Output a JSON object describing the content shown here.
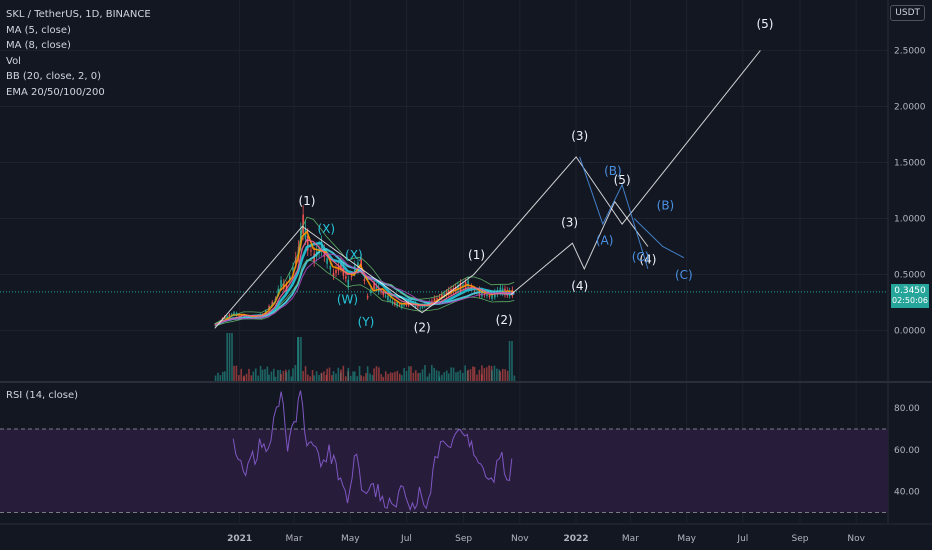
{
  "header": {
    "symbol": "SKL / TetherUS, 1D, BINANCE",
    "indicators": [
      "MA (5, close)",
      "MA (8, close)",
      "Vol",
      "BB (20, close, 2, 0)",
      "EMA 20/50/100/200"
    ],
    "currency": "USDT"
  },
  "price_tag": {
    "value": "0.3450",
    "countdown": "02:50:06"
  },
  "rsi_panel": {
    "label": "RSI (14, close)"
  },
  "colors": {
    "background": "#131722",
    "candle_up": "#26a69a",
    "candle_down": "#ef5350",
    "wave_white": "#f2f2f2",
    "wave_blue": "#4a90e2",
    "rsi_line": "#7e57c2",
    "rsi_band": "#2a1d3d"
  },
  "chart_data": [
    {
      "type": "line",
      "name": "price",
      "y_axis_ticks": [
        "2.5000",
        "2.0000",
        "1.5000",
        "1.0000",
        "0.5000",
        "0.0000"
      ],
      "x_axis_ticks": [
        "2021",
        "Mar",
        "May",
        "Jul",
        "Sep",
        "Nov",
        "2022",
        "Mar",
        "May",
        "Jul",
        "Sep",
        "Nov"
      ],
      "ylim": [
        -0.45,
        2.95
      ],
      "price_path": [
        [
          "2020-12-05",
          0.05
        ],
        [
          "2020-12-15",
          0.12
        ],
        [
          "2020-12-25",
          0.15
        ],
        [
          "2021-01-05",
          0.13
        ],
        [
          "2021-01-15",
          0.12
        ],
        [
          "2021-01-25",
          0.14
        ],
        [
          "2021-02-01",
          0.2
        ],
        [
          "2021-02-08",
          0.28
        ],
        [
          "2021-02-14",
          0.42
        ],
        [
          "2021-02-20",
          0.38
        ],
        [
          "2021-02-27",
          0.55
        ],
        [
          "2021-03-05",
          0.7
        ],
        [
          "2021-03-10",
          0.95
        ],
        [
          "2021-03-15",
          0.78
        ],
        [
          "2021-03-22",
          0.65
        ],
        [
          "2021-03-30",
          0.75
        ],
        [
          "2021-04-05",
          0.62
        ],
        [
          "2021-04-12",
          0.5
        ],
        [
          "2021-04-20",
          0.58
        ],
        [
          "2021-04-28",
          0.42
        ],
        [
          "2021-05-05",
          0.55
        ],
        [
          "2021-05-12",
          0.6
        ],
        [
          "2021-05-19",
          0.3
        ],
        [
          "2021-05-26",
          0.4
        ],
        [
          "2021-06-05",
          0.33
        ],
        [
          "2021-06-15",
          0.25
        ],
        [
          "2021-06-25",
          0.22
        ],
        [
          "2021-07-05",
          0.25
        ],
        [
          "2021-07-15",
          0.2
        ],
        [
          "2021-07-25",
          0.24
        ],
        [
          "2021-08-05",
          0.3
        ],
        [
          "2021-08-15",
          0.34
        ],
        [
          "2021-08-25",
          0.38
        ],
        [
          "2021-09-05",
          0.42
        ],
        [
          "2021-09-12",
          0.35
        ],
        [
          "2021-09-20",
          0.33
        ],
        [
          "2021-10-01",
          0.3
        ],
        [
          "2021-10-10",
          0.36
        ],
        [
          "2021-10-20",
          0.33
        ],
        [
          "2021-10-26",
          0.345
        ]
      ],
      "wave_white": [
        [
          "2020-12-05",
          0.02
        ],
        [
          "2021-03-10",
          0.93
        ],
        [
          "2021-07-18",
          0.16
        ],
        [
          "2021-09-12",
          0.5
        ],
        [
          "2022-01-01",
          1.55
        ],
        [
          "2022-02-20",
          0.95
        ],
        [
          "2022-07-20",
          2.5
        ]
      ],
      "wave_white_2": [
        [
          "2021-10-22",
          0.32
        ],
        [
          "2021-12-28",
          0.78
        ],
        [
          "2022-01-10",
          0.55
        ],
        [
          "2022-02-12",
          1.15
        ],
        [
          "2022-03-20",
          0.75
        ]
      ],
      "wave_blue_1": [
        [
          "2022-01-05",
          1.55
        ],
        [
          "2022-01-30",
          0.95
        ],
        [
          "2022-02-20",
          1.3
        ],
        [
          "2022-03-20",
          0.55
        ]
      ],
      "wave_blue_2": [
        [
          "2022-03-05",
          1.0
        ],
        [
          "2022-04-05",
          0.75
        ],
        [
          "2022-04-28",
          0.65
        ]
      ],
      "wave_labels": [
        {
          "text": "(1)",
          "x": "2021-03-15",
          "y": 1.12,
          "color": "white"
        },
        {
          "text": "(X)",
          "x": "2021-04-05",
          "y": 0.87,
          "color": "teal"
        },
        {
          "text": "(X)",
          "x": "2021-05-05",
          "y": 0.64,
          "color": "teal"
        },
        {
          "text": "(W)",
          "x": "2021-04-28",
          "y": 0.24,
          "color": "teal"
        },
        {
          "text": "(Y)",
          "x": "2021-05-18",
          "y": 0.04,
          "color": "teal"
        },
        {
          "text": "(2)",
          "x": "2021-07-18",
          "y": -0.01,
          "color": "white"
        },
        {
          "text": "(1)",
          "x": "2021-09-15",
          "y": 0.64,
          "color": "white"
        },
        {
          "text": "(2)",
          "x": "2021-10-15",
          "y": 0.06,
          "color": "white"
        },
        {
          "text": "(3)",
          "x": "2022-01-05",
          "y": 1.7,
          "color": "white"
        },
        {
          "text": "(3)",
          "x": "2021-12-25",
          "y": 0.93,
          "color": "white"
        },
        {
          "text": "(4)",
          "x": "2022-01-05",
          "y": 0.36,
          "color": "white"
        },
        {
          "text": "(5)",
          "x": "2022-02-20",
          "y": 1.31,
          "color": "white"
        },
        {
          "text": "(4)",
          "x": "2022-03-20",
          "y": 0.6,
          "color": "white"
        },
        {
          "text": "(5)",
          "x": "2022-07-25",
          "y": 2.7,
          "color": "white"
        },
        {
          "text": "(B)",
          "x": "2022-02-10",
          "y": 1.39,
          "color": "blue"
        },
        {
          "text": "(A)",
          "x": "2022-02-01",
          "y": 0.77,
          "color": "blue"
        },
        {
          "text": "(C)",
          "x": "2022-03-12",
          "y": 0.62,
          "color": "blue"
        },
        {
          "text": "(B)",
          "x": "2022-04-08",
          "y": 1.08,
          "color": "blue"
        },
        {
          "text": "(C)",
          "x": "2022-04-28",
          "y": 0.46,
          "color": "blue"
        }
      ]
    },
    {
      "type": "line",
      "name": "RSI (14, close)",
      "y_axis_ticks": [
        "80.00",
        "60.00",
        "40.00"
      ],
      "band": [
        30,
        70
      ],
      "ylim": [
        25,
        92
      ],
      "values": [
        [
          "2020-12-25",
          62
        ],
        [
          "2021-01-05",
          48
        ],
        [
          "2021-01-15",
          55
        ],
        [
          "2021-01-25",
          65
        ],
        [
          "2021-02-01",
          58
        ],
        [
          "2021-02-10",
          78
        ],
        [
          "2021-02-15",
          87
        ],
        [
          "2021-02-22",
          60
        ],
        [
          "2021-03-01",
          72
        ],
        [
          "2021-03-08",
          88
        ],
        [
          "2021-03-15",
          58
        ],
        [
          "2021-03-22",
          66
        ],
        [
          "2021-03-30",
          55
        ],
        [
          "2021-04-08",
          60
        ],
        [
          "2021-04-18",
          50
        ],
        [
          "2021-04-28",
          38
        ],
        [
          "2021-05-08",
          62
        ],
        [
          "2021-05-16",
          36
        ],
        [
          "2021-05-26",
          42
        ],
        [
          "2021-06-05",
          38
        ],
        [
          "2021-06-15",
          33
        ],
        [
          "2021-06-25",
          40
        ],
        [
          "2021-07-05",
          34
        ],
        [
          "2021-07-15",
          38
        ],
        [
          "2021-07-25",
          33
        ],
        [
          "2021-08-01",
          55
        ],
        [
          "2021-08-10",
          68
        ],
        [
          "2021-08-18",
          62
        ],
        [
          "2021-08-28",
          66
        ],
        [
          "2021-09-05",
          70
        ],
        [
          "2021-09-12",
          55
        ],
        [
          "2021-09-22",
          48
        ],
        [
          "2021-10-01",
          44
        ],
        [
          "2021-10-10",
          58
        ],
        [
          "2021-10-18",
          48
        ],
        [
          "2021-10-26",
          53
        ]
      ]
    }
  ]
}
